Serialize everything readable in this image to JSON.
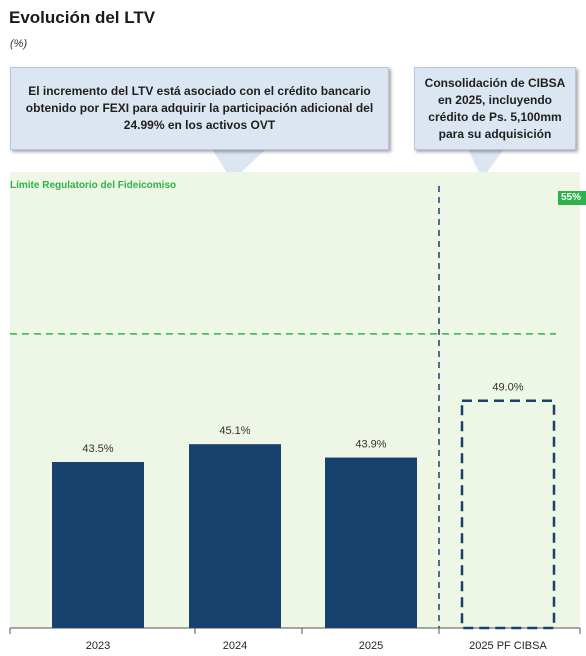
{
  "header": {
    "title": "Evolución del LTV",
    "subtitle": "(%)"
  },
  "callouts": {
    "left": "El incremento del LTV está asociado con el crédito bancario obtenido por FEXI para adquirir la participación adicional del 24.99% en los activos OVT",
    "right": "Consolidación de CIBSA en 2025, incluyendo crédito de Ps. 5,100mm para su adquisición"
  },
  "limit": {
    "label": "Límite Regulatorio del Fideicomiso",
    "badge": "55%",
    "value": 55,
    "color": "#2db34a"
  },
  "colors": {
    "bar": "#17426e",
    "plot_background": "#eef6e6",
    "pro_forma_border": "#17426e"
  },
  "chart_data": {
    "type": "bar",
    "title": "Evolución del LTV",
    "subtitle": "(%)",
    "xlabel": "",
    "ylabel": "",
    "categories": [
      "2023",
      "2024",
      "2025",
      "2025 PF CIBSA"
    ],
    "values": [
      43.5,
      45.1,
      43.9,
      49.0
    ],
    "data_labels": [
      "43.5%",
      "45.1%",
      "43.9%",
      "49.0%"
    ],
    "pro_forma": [
      false,
      false,
      false,
      true
    ],
    "reference_line": {
      "label": "Límite Regulatorio del Fideicomiso",
      "value": 55
    },
    "grid": false
  }
}
